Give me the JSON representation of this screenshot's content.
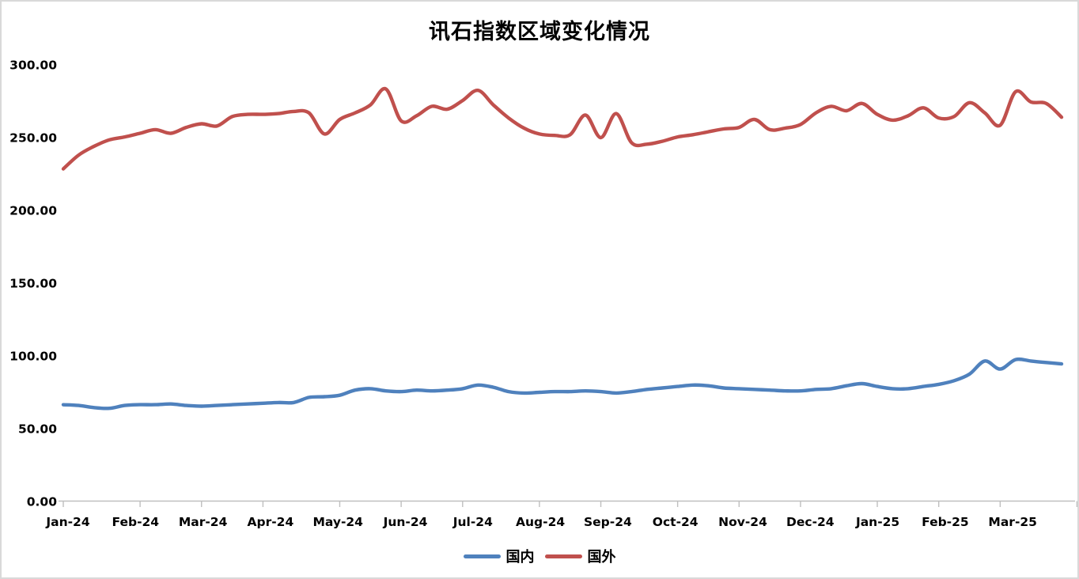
{
  "chart_data": {
    "type": "line",
    "title": "讯石指数区域变化情况",
    "x_unit": "weekly",
    "x_tick_labels": [
      "Jan-24",
      "Feb-24",
      "Mar-24",
      "Apr-24",
      "May-24",
      "Jun-24",
      "Jul-24",
      "Aug-24",
      "Sep-24",
      "Oct-24",
      "Nov-24",
      "Dec-24",
      "Jan-25",
      "Feb-25",
      "Mar-25"
    ],
    "month_boundaries_weeks": [
      0,
      5,
      9,
      13,
      18,
      22,
      26,
      31,
      35,
      40,
      44,
      48,
      53,
      57,
      61,
      66
    ],
    "y_ticks": [
      0,
      50,
      100,
      150,
      200,
      250,
      300
    ],
    "y_tick_labels": [
      "0.00",
      "50.00",
      "100.00",
      "150.00",
      "200.00",
      "250.00",
      "300.00"
    ],
    "ylim": [
      0,
      300
    ],
    "grid": false,
    "legend_position": "bottom",
    "series": [
      {
        "name": "国内",
        "key": "domestic",
        "color": "#4F81BD",
        "values": [
          66.5,
          66,
          64.5,
          64,
          66,
          66.5,
          66.5,
          67,
          66,
          65.5,
          66,
          66.5,
          67,
          67.5,
          68,
          68,
          71.5,
          72,
          73,
          76.5,
          77.5,
          76,
          75.5,
          76.5,
          76,
          76.5,
          77.5,
          80,
          78.5,
          75.5,
          74.5,
          75,
          75.5,
          75.5,
          76,
          75.5,
          74.5,
          75.5,
          77,
          78,
          79,
          80,
          79.5,
          78,
          77.5,
          77,
          76.5,
          76,
          76,
          77,
          77.5,
          79.5,
          81,
          79,
          77.5,
          77.5,
          79,
          80.5,
          83,
          87.5,
          96.5,
          91,
          97.5,
          96.5,
          95.5,
          94.5
        ]
      },
      {
        "name": "国外",
        "key": "foreign",
        "color": "#C0504D",
        "values": [
          228.5,
          238,
          244,
          248.5,
          250.5,
          253,
          255.5,
          253,
          257,
          259.5,
          258,
          264.5,
          266,
          266,
          266.5,
          268,
          267,
          252.5,
          262.5,
          267,
          272.5,
          283.5,
          261.5,
          265,
          271.5,
          269.5,
          275.5,
          282.5,
          272.5,
          263.5,
          256.5,
          252.5,
          251.5,
          252,
          265.5,
          250,
          266.5,
          246.5,
          245.5,
          247.5,
          250.5,
          252,
          254,
          256,
          257,
          262.5,
          255.5,
          256.5,
          259,
          267,
          271.5,
          268.5,
          273.5,
          266,
          262,
          265,
          270.5,
          263.5,
          264.5,
          274,
          267,
          258.5,
          281.5,
          274.5,
          273.5,
          264
        ]
      }
    ]
  },
  "colors": {
    "axis_line": "#BFBFBF",
    "text": "#000000",
    "frame": "#D9D9D9",
    "background": "#FFFFFF"
  }
}
